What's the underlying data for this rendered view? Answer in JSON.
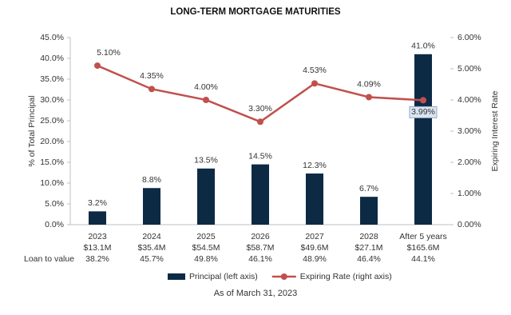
{
  "chart_data": {
    "type": "bar",
    "title": "LONG-TERM MORTGAGE MATURITIES",
    "y_label": "% of Total Principal",
    "y2_label": "Expiring Interest Rate",
    "categories": [
      "2023",
      "2024",
      "2025",
      "2026",
      "2027",
      "2028",
      "After 5 years"
    ],
    "principal_amounts": [
      "$13.1M",
      "$35.4M",
      "$54.5M",
      "$58.7M",
      "$49.6M",
      "$27.1M",
      "$165.6M"
    ],
    "loan_to_value_label": "Loan to value",
    "loan_to_value": [
      "38.2%",
      "45.7%",
      "49.8%",
      "46.1%",
      "48.9%",
      "46.4%",
      "44.1%"
    ],
    "series": [
      {
        "name": "Principal (left axis)",
        "type": "bar",
        "color": "#0d2a45",
        "values": [
          3.2,
          8.8,
          13.5,
          14.5,
          12.3,
          6.7,
          41.0
        ],
        "value_labels": [
          "3.2%",
          "8.8%",
          "13.5%",
          "14.5%",
          "12.3%",
          "6.7%",
          "41.0%"
        ]
      },
      {
        "name": "Expiring Rate (right axis)",
        "type": "line",
        "axis": "y2",
        "color": "#c0504d",
        "values": [
          5.1,
          4.35,
          4.0,
          3.3,
          4.53,
          4.09,
          3.99
        ],
        "value_labels": [
          "5.10%",
          "4.35%",
          "4.00%",
          "3.30%",
          "4.53%",
          "4.09%",
          "3.99%"
        ]
      }
    ],
    "ylim": [
      0,
      45
    ],
    "yticks": [
      {
        "value": 0,
        "label": "0.0%"
      },
      {
        "value": 5,
        "label": "5.0%"
      },
      {
        "value": 10,
        "label": "10.0%"
      },
      {
        "value": 15,
        "label": "15.0%"
      },
      {
        "value": 20,
        "label": "20.0%"
      },
      {
        "value": 25,
        "label": "25.0%"
      },
      {
        "value": 30,
        "label": "30.0%"
      },
      {
        "value": 35,
        "label": "35.0%"
      },
      {
        "value": 40,
        "label": "40.0%"
      },
      {
        "value": 45,
        "label": "45.0%"
      }
    ],
    "y2lim": [
      0,
      6
    ],
    "y2ticks": [
      {
        "value": 0,
        "label": "0.00%"
      },
      {
        "value": 1,
        "label": "1.00%"
      },
      {
        "value": 2,
        "label": "2.00%"
      },
      {
        "value": 3,
        "label": "3.00%"
      },
      {
        "value": 4,
        "label": "4.00%"
      },
      {
        "value": 5,
        "label": "5.00%"
      },
      {
        "value": 6,
        "label": "6.00%"
      }
    ],
    "grid": false,
    "legend": "bottom",
    "footnote": "As of March 31, 2023"
  }
}
